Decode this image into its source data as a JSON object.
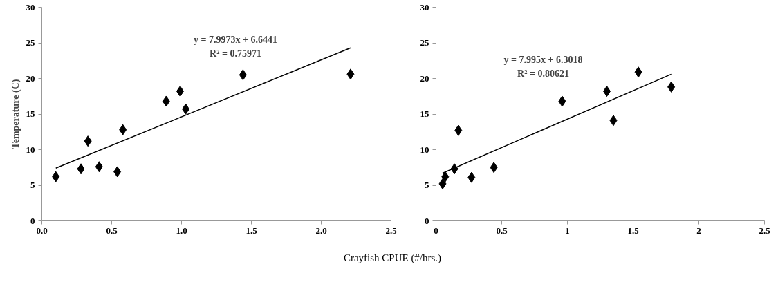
{
  "chart_data": [
    {
      "type": "scatter",
      "ylabel": "Temperature (C)",
      "xlabel": "Crayfish CPUE (#/hrs.)",
      "marker": "diamond",
      "grid": false,
      "xlim": [
        0,
        2.5
      ],
      "xticks": [
        {
          "value": 0,
          "label": "0.0"
        },
        {
          "value": 0.5,
          "label": "0.5"
        },
        {
          "value": 1,
          "label": "1.0"
        },
        {
          "value": 1.5,
          "label": "1.5"
        },
        {
          "value": 2,
          "label": "2.0"
        },
        {
          "value": 2.5,
          "label": "2.5"
        }
      ],
      "ylim": [
        0,
        30
      ],
      "yticks": [
        0,
        5,
        10,
        15,
        20,
        25,
        30
      ],
      "series": [
        {
          "color": "#000000",
          "x": [
            0.1,
            0.28,
            0.33,
            0.41,
            0.54,
            0.58,
            0.89,
            0.99,
            1.03,
            1.44,
            2.21
          ],
          "values": [
            6.2,
            7.3,
            11.2,
            7.6,
            6.9,
            12.8,
            16.8,
            18.2,
            15.7,
            20.5,
            20.6
          ]
        },
        {
          "type": "line",
          "color": "#000000",
          "marker": "none",
          "x": [
            0.1,
            2.21
          ],
          "values": [
            7.4,
            24.3
          ]
        }
      ],
      "annotations": [
        "y = 7.9973x + 6.6441",
        "R² = 0.75971"
      ]
    },
    {
      "type": "scatter",
      "marker": "diamond",
      "grid": false,
      "xlim": [
        0,
        2.5
      ],
      "xticks": [
        0,
        0.5,
        1,
        1.5,
        2,
        2.5
      ],
      "ylim": [
        0,
        30
      ],
      "yticks": [
        0,
        5,
        10,
        15,
        20,
        25,
        30
      ],
      "series": [
        {
          "color": "#000000",
          "x": [
            0.05,
            0.07,
            0.14,
            0.17,
            0.27,
            0.44,
            0.96,
            1.3,
            1.35,
            1.54,
            1.79
          ],
          "values": [
            5.2,
            6.2,
            7.3,
            12.7,
            6.1,
            7.5,
            16.8,
            18.2,
            14.1,
            20.9,
            18.8
          ]
        },
        {
          "type": "line",
          "color": "#000000",
          "marker": "none",
          "x": [
            0.05,
            1.79
          ],
          "values": [
            6.7,
            20.6
          ]
        }
      ],
      "annotations": [
        "y = 7.995x + 6.3018",
        "R² = 0.80621"
      ]
    }
  ]
}
